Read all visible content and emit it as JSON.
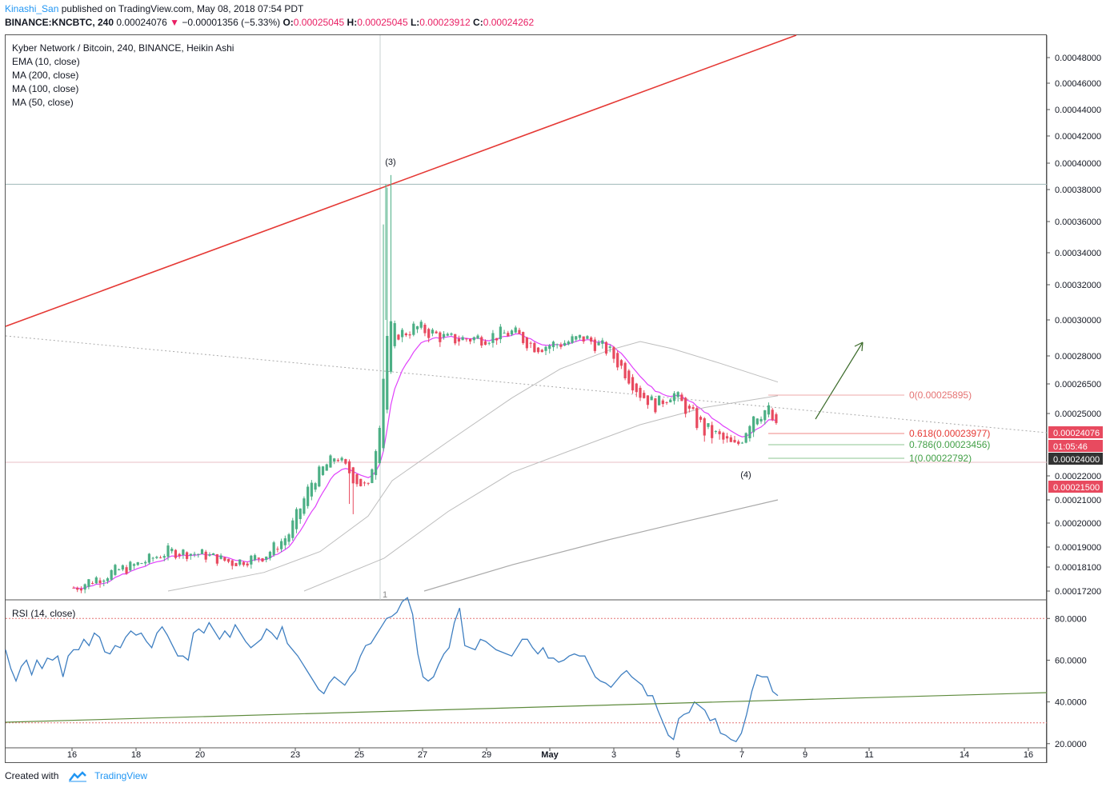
{
  "header": {
    "user": "Kinashi_San",
    "published_text": "published on TradingView.com, May 08, 2018 07:54 PDT",
    "symbol": "BINANCE:KNCBTC, 240",
    "last": "0.00024076",
    "arrow": "▼",
    "change": "−0.00001356 (−5.33%)",
    "o_label": "O:",
    "o": "0.00025045",
    "h_label": "H:",
    "h": "0.00025045",
    "l_label": "L:",
    "l": "0.00023912",
    "c_label": "C:",
    "c": "0.00024262"
  },
  "legend": {
    "title": "Kyber Network / Bitcoin, 240, BINANCE, Heikin Ashi",
    "ema10": "EMA (10, close)",
    "ma200": "MA (200, close)",
    "ma100": "MA (100, close)",
    "ma50": "MA (50, close)",
    "rsi": "RSI (14, close)"
  },
  "colors": {
    "up": "#4caf85",
    "down": "#e84a5f",
    "ema": "#e040fb",
    "ma": "#bdbdbd",
    "trend": "#e53935",
    "rsi": "#3f7fc1",
    "rsi_trend": "#5d8a3c",
    "fib0": "#e57373",
    "fib618": "#e53935",
    "fib786": "#43a047"
  },
  "chart_data": [
    {
      "type": "candlestick",
      "title": "Kyber Network / Bitcoin, 240, BINANCE, Heikin Ashi",
      "x_ticks": [
        "16",
        "18",
        "20",
        "23",
        "25",
        "27",
        "29",
        "May",
        "3",
        "5",
        "7",
        "9",
        "11",
        "14",
        "16"
      ],
      "y_ticks": [
        "0.00048000",
        "0.00046000",
        "0.00044000",
        "0.00042000",
        "0.00040000",
        "0.00038000",
        "0.00036000",
        "0.00034000",
        "0.00032000",
        "0.00030000",
        "0.00028000",
        "0.00026500",
        "0.00025000",
        "0.00024000",
        "0.00022000",
        "0.00021000",
        "0.00020000",
        "0.00019000",
        "0.00018100",
        "0.00017200"
      ],
      "price_labels": [
        {
          "text": "0.00024076",
          "style": "down"
        },
        {
          "text": "01:05:46",
          "style": "down"
        },
        {
          "text": "0.00024000",
          "style": "dark"
        },
        {
          "text": "0.00021500",
          "style": "down"
        }
      ],
      "annotations": [
        "(3)",
        "(4)",
        "1"
      ],
      "fib_levels": [
        {
          "label": "0(0.00025895)",
          "value": 0.00025895
        },
        {
          "label": "0.618(0.00023977)",
          "value": 0.00023977
        },
        {
          "label": "0.786(0.00023456)",
          "value": 0.00023456
        },
        {
          "label": "1(0.00022792)",
          "value": 0.00022792
        }
      ],
      "horizontal_levels": [
        0.000384,
        0.000229
      ]
    },
    {
      "type": "line",
      "title": "RSI (14, close)",
      "y_ticks": [
        "80.0000",
        "60.0000",
        "40.0000",
        "20.0000"
      ],
      "ylim": [
        18,
        87
      ],
      "bands": [
        80,
        30
      ],
      "values": [
        65,
        56,
        50,
        57,
        60,
        53,
        60,
        56,
        61,
        60,
        62,
        52,
        62,
        65,
        65,
        70,
        67,
        73,
        71,
        64,
        63,
        67,
        66,
        71,
        74,
        72,
        73,
        69,
        66,
        73,
        76,
        72,
        67,
        62,
        62,
        60,
        73,
        75,
        73,
        78,
        74,
        70,
        74,
        71,
        77,
        73,
        69,
        66,
        68,
        70,
        75,
        73,
        70,
        76,
        68,
        65,
        62,
        58,
        54,
        50,
        46,
        44,
        49,
        52,
        50,
        48,
        52,
        55,
        62,
        67,
        68,
        72,
        76,
        80,
        81,
        83,
        88,
        90,
        82,
        63,
        52,
        50,
        52,
        58,
        63,
        66,
        78,
        85,
        67,
        66,
        65,
        70,
        69,
        67,
        65,
        64,
        63,
        62,
        66,
        70,
        70,
        66,
        63,
        66,
        61,
        61,
        59,
        60,
        62,
        63,
        62,
        62,
        57,
        52,
        50,
        49,
        47,
        50,
        53,
        55,
        52,
        50,
        48,
        43,
        43,
        36,
        30,
        24,
        22,
        32,
        34,
        35,
        40,
        38,
        36,
        31,
        32,
        25,
        24,
        22,
        21,
        25,
        34,
        45,
        53,
        52,
        52,
        45,
        43
      ]
    }
  ]
}
